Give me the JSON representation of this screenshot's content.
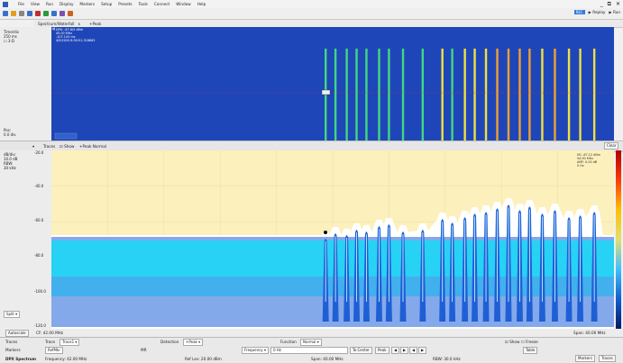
{
  "menu": {
    "items": [
      "File",
      "View",
      "Run",
      "Display",
      "Markers",
      "Setup",
      "Presets",
      "Tools",
      "Connect",
      "Window",
      "Help"
    ]
  },
  "window_controls": [
    "_",
    "⧉",
    "✕"
  ],
  "toolbar_run": {
    "live_label": "REC",
    "replay_label": "Replay",
    "run_label": "Run"
  },
  "tabs": {
    "title": "Spectrum/Waterfall",
    "close": "x",
    "peak": "+Peak"
  },
  "spectrogram": {
    "top_text": [
      "DPX: -87.6/5 dBm",
      "45.00 MHz",
      "-107.143 ms",
      "4/9/2020 8:50:51.318663"
    ],
    "side": {
      "time_div_label": "Time/div",
      "time_div_value": "250 ms",
      "three_d_label": "3-D",
      "pos_label": "Pos:",
      "pos_value": "0.0 div"
    }
  },
  "spectrum_bar": {
    "traces_label": "Traces",
    "show_label": "Show",
    "trace_name": "+Peak Normal",
    "clear_button": "Clear"
  },
  "spectrum": {
    "side": {
      "dbdiv_label": "dB/div:",
      "dbdiv_value": "10.0 dB",
      "rbw_label": "RBW:",
      "rbw_value": "30 kHz"
    },
    "yticks": [
      "-20.0",
      "-40.0",
      "-60.0",
      "-80.0",
      "-100.0",
      "-120.0"
    ],
    "marker_readout": [
      "M1 -87.12 dBm",
      "54.90 MHz",
      "ΔMF: 0.00 dB",
      "0 Hz"
    ],
    "units_select": "Split",
    "cf": "CF: 42.00 MHz",
    "autoscale": "Autoscale",
    "span": "Span: 40.00 MHz"
  },
  "controls": {
    "row1": {
      "traces_label": "Traces",
      "trace_select": "Trace1",
      "detection_label": "Detection",
      "detection_value": "+Peak",
      "function_label": "Function",
      "function_value": "Normal",
      "show_label": "Show",
      "freeze_label": "Freeze"
    },
    "row2": {
      "markers_label": "Markers",
      "ref_label": "RefMkr",
      "mkr_value": "MR",
      "freq_label": "Frequency",
      "freq_value": "0 Hz",
      "to_center": "To Center",
      "peak": "Peak",
      "table": "Table"
    },
    "status": {
      "mode": "DPX Spectrum",
      "freq": "Frequency: 42.00 MHz",
      "ref": "Ref Lev: 20.00 dBm",
      "span": "Span: 40.00 MHz",
      "rbw": "RBW: 30.0 kHz",
      "markers_btn": "Markers",
      "traces_btn": "Traces"
    }
  },
  "chart_data": {
    "type": "spectrum",
    "x_center_mhz": 42.0,
    "x_span_mhz": 40.0,
    "ylim": [
      -120,
      -20
    ],
    "noise_floor_db": -80,
    "carriers": [
      {
        "freq_mhz": 41.5,
        "peak_db": -69
      },
      {
        "freq_mhz": 42.2,
        "peak_db": -66
      },
      {
        "freq_mhz": 43.0,
        "peak_db": -67
      },
      {
        "freq_mhz": 43.7,
        "peak_db": -64
      },
      {
        "freq_mhz": 44.4,
        "peak_db": -65
      },
      {
        "freq_mhz": 45.3,
        "peak_db": -62
      },
      {
        "freq_mhz": 46.0,
        "peak_db": -61
      },
      {
        "freq_mhz": 47.0,
        "peak_db": -65
      },
      {
        "freq_mhz": 48.4,
        "peak_db": -64
      },
      {
        "freq_mhz": 49.8,
        "peak_db": -58
      },
      {
        "freq_mhz": 50.5,
        "peak_db": -60
      },
      {
        "freq_mhz": 51.4,
        "peak_db": -57
      },
      {
        "freq_mhz": 52.1,
        "peak_db": -55
      },
      {
        "freq_mhz": 52.9,
        "peak_db": -54
      },
      {
        "freq_mhz": 53.7,
        "peak_db": -52
      },
      {
        "freq_mhz": 54.5,
        "peak_db": -50
      },
      {
        "freq_mhz": 55.3,
        "peak_db": -53
      },
      {
        "freq_mhz": 56.0,
        "peak_db": -51
      },
      {
        "freq_mhz": 56.9,
        "peak_db": -55
      },
      {
        "freq_mhz": 57.8,
        "peak_db": -53
      },
      {
        "freq_mhz": 58.8,
        "peak_db": -57
      },
      {
        "freq_mhz": 59.6,
        "peak_db": -56
      },
      {
        "freq_mhz": 60.6,
        "peak_db": -54
      }
    ]
  }
}
